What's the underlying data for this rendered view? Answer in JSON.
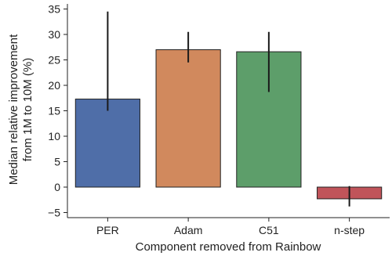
{
  "chart_data": {
    "type": "bar",
    "categories": [
      "PER",
      "Adam",
      "C51",
      "n-step"
    ],
    "values": [
      17.3,
      27.0,
      26.6,
      -2.3
    ],
    "error_bars": [
      {
        "low": 15.0,
        "high": 34.5
      },
      {
        "low": 24.5,
        "high": 30.5
      },
      {
        "low": 18.7,
        "high": 30.5
      },
      {
        "low": -3.8,
        "high": 0.2
      }
    ],
    "bar_colors": [
      "#4f6ea8",
      "#d1895d",
      "#5d9e6a",
      "#c0545a"
    ],
    "xlabel": "Component removed from Rainbow",
    "ylabel_lines": [
      "Median relative improvement",
      "from 1M to 10M (%)"
    ],
    "ylim": [
      -6,
      36
    ],
    "yticks": [
      -5,
      0,
      5,
      10,
      15,
      20,
      25,
      30,
      35
    ],
    "ytick_labels": [
      "−5",
      "0",
      "5",
      "10",
      "15",
      "20",
      "25",
      "30",
      "35"
    ],
    "grid": false
  }
}
